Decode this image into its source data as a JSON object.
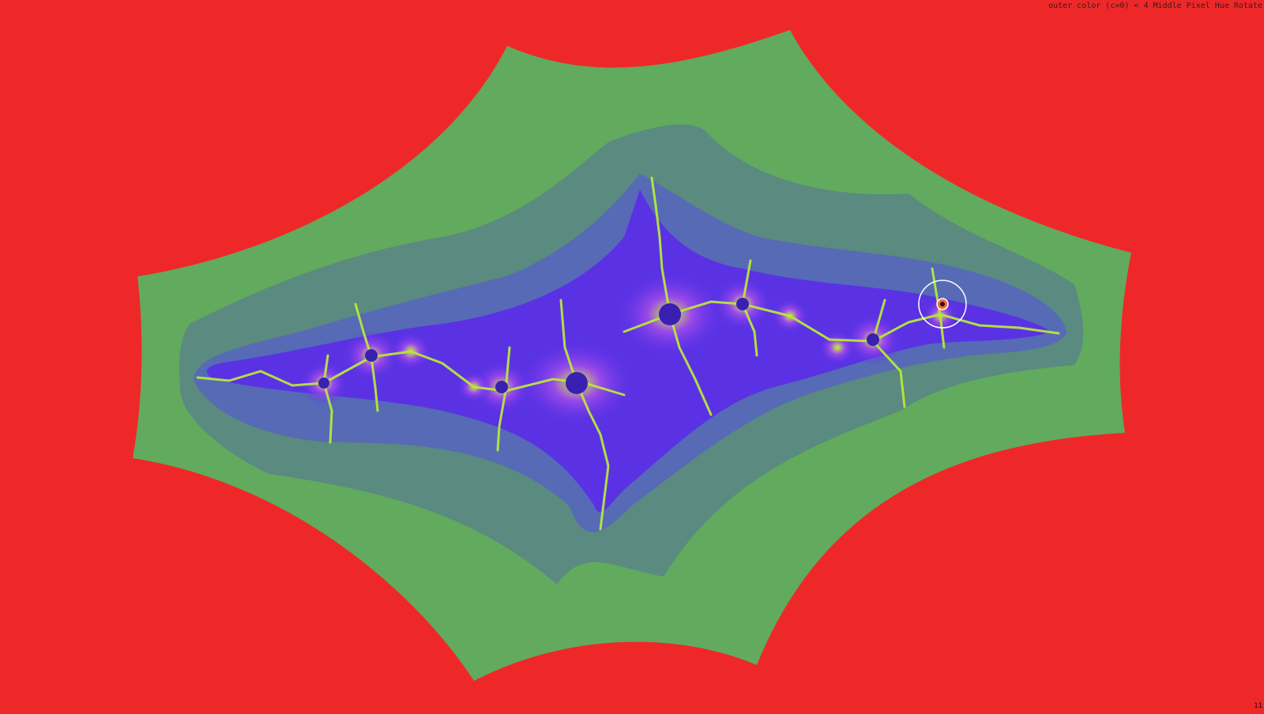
{
  "overlay": {
    "mode_text": "outer color (c=0) < 4 Middle Pixel Hue Rotate",
    "frame_counter": "11"
  },
  "colors": {
    "background": "#ee2828",
    "outer_band": "#62aa5e",
    "middle_band": "#5a8a80",
    "inner_band": "#5566bb",
    "core": "#5a2ee8",
    "filament": "#b8e83a",
    "cursor_ring": "#ffffff"
  },
  "icons": {
    "cursor": "crosshair-circle-icon"
  }
}
